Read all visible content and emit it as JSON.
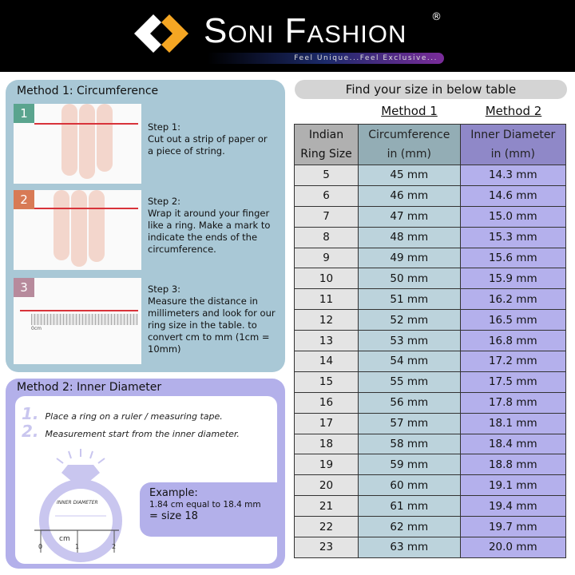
{
  "brand": {
    "name": "Soni Fashion",
    "registered": "®",
    "tagline": "Feel Unique...Feel Exclusive...",
    "colors": {
      "orange": "#f5a623",
      "white": "#ffffff"
    }
  },
  "method1": {
    "title": "Method 1:  Circumference",
    "steps": [
      {
        "num": "1",
        "title": "Step 1:",
        "text": "Cut out a strip of paper or a piece of string."
      },
      {
        "num": "2",
        "title": "Step 2:",
        "text": "Wrap it around your finger like a ring. Make a mark to indicate the ends of the circumference."
      },
      {
        "num": "3",
        "title": "Step 3:",
        "text": "Measure the distance in millimeters  and look for our ring size in the table. to convert cm to mm (1cm = 10mm)"
      }
    ],
    "ruler_unit": "0cm"
  },
  "method2": {
    "title": "Method 2:  Inner Diameter",
    "steps": [
      {
        "num": "1.",
        "text": "Place a ring on a ruler / measuring tape."
      },
      {
        "num": "2.",
        "text": "Measurement start from the inner diameter."
      }
    ],
    "diagram": {
      "label": "INNER DIAMETER",
      "unit": "cm",
      "ticks": [
        "0",
        "1",
        "2"
      ]
    },
    "example": {
      "title": "Example:",
      "line": "1.84 cm equal to 18.4 mm",
      "result": "= size 18"
    }
  },
  "table": {
    "heading": "Find your size in below table",
    "method1": "Method 1",
    "method2": "Method 2",
    "headers": [
      [
        "Indian",
        "Ring Size"
      ],
      [
        "Circumference",
        "in (mm)"
      ],
      [
        "Inner Diameter",
        "in (mm)"
      ]
    ],
    "rows": [
      [
        "5",
        "45 mm",
        "14.3 mm"
      ],
      [
        "6",
        "46 mm",
        "14.6 mm"
      ],
      [
        "7",
        "47 mm",
        "15.0 mm"
      ],
      [
        "8",
        "48 mm",
        "15.3 mm"
      ],
      [
        "9",
        "49 mm",
        "15.6 mm"
      ],
      [
        "10",
        "50 mm",
        "15.9 mm"
      ],
      [
        "11",
        "51 mm",
        "16.2 mm"
      ],
      [
        "12",
        "52 mm",
        "16.5 mm"
      ],
      [
        "13",
        "53 mm",
        "16.8 mm"
      ],
      [
        "14",
        "54 mm",
        "17.2 mm"
      ],
      [
        "15",
        "55 mm",
        "17.5 mm"
      ],
      [
        "16",
        "56 mm",
        "17.8 mm"
      ],
      [
        "17",
        "57 mm",
        "18.1 mm"
      ],
      [
        "18",
        "58 mm",
        "18.4 mm"
      ],
      [
        "19",
        "59 mm",
        "18.8 mm"
      ],
      [
        "20",
        "60 mm",
        "19.1 mm"
      ],
      [
        "21",
        "61 mm",
        "19.4 mm"
      ],
      [
        "22",
        "62 mm",
        "19.7 mm"
      ],
      [
        "23",
        "63 mm",
        "20.0 mm"
      ]
    ]
  },
  "colors": {
    "method1_panel": "#a9c8d6",
    "method2_panel": "#b3b0ea",
    "step1": "#5aa48e",
    "step2": "#d87a55",
    "step3": "#b78a9c"
  }
}
